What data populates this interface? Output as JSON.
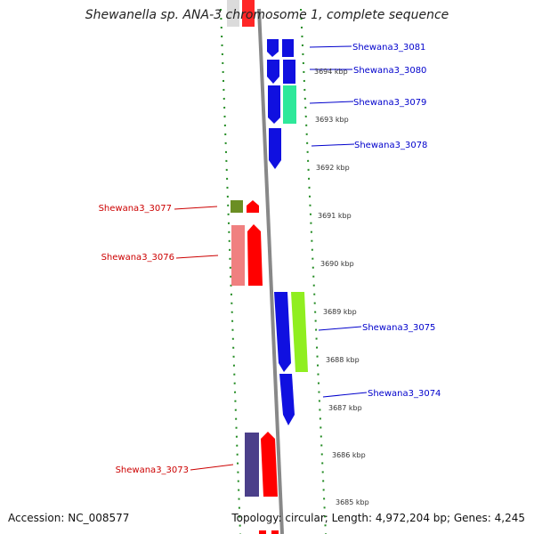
{
  "title": "Shewanella sp. ANA-3 chromosome 1, complete sequence",
  "footer": {
    "accession": "Accession: NC_008577",
    "stats": "Topology: circular; Length: 4,972,204 bp; Genes: 4,245"
  },
  "tick_labels": [
    "3694 kbp",
    "3693 kbp",
    "3692 kbp",
    "3691 kbp",
    "3690 kbp",
    "3689 kbp",
    "3688 kbp",
    "3687 kbp",
    "3686 kbp",
    "3685 kbp"
  ],
  "genes": [
    {
      "label": "Shewana3_3081",
      "strand": "right",
      "color": "#1010e0"
    },
    {
      "label": "Shewana3_3080",
      "strand": "right",
      "color": "#1010e0"
    },
    {
      "label": "Shewana3_3079",
      "strand": "right",
      "color": "#2ee89a"
    },
    {
      "label": "Shewana3_3078",
      "strand": "right",
      "color": "#1010e0"
    },
    {
      "label": "Shewana3_3077",
      "strand": "left",
      "color": "#6b8e23"
    },
    {
      "label": "Shewana3_3076",
      "strand": "left",
      "color": "#f08080"
    },
    {
      "label": "Shewana3_3075",
      "strand": "right",
      "color": "#90ee20"
    },
    {
      "label": "Shewana3_3074",
      "strand": "right",
      "color": "#1010e0"
    },
    {
      "label": "Shewana3_3073",
      "strand": "left",
      "color": "#4b3f8a"
    }
  ],
  "colors": {
    "forward_label": "#0000cc",
    "reverse_label": "#cc0000",
    "cds": "#ff0000",
    "tick": "#228b22"
  }
}
